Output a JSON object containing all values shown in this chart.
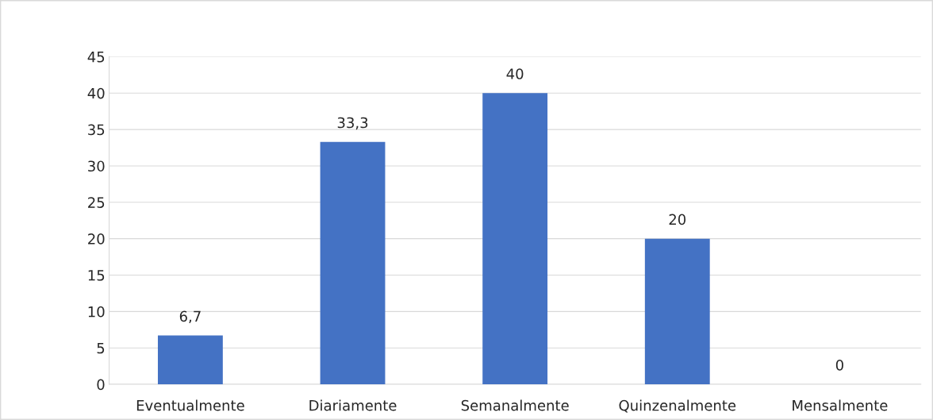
{
  "chart_data": {
    "type": "bar",
    "categories": [
      "Eventualmente",
      "Diariamente",
      "Semanalmente",
      "Quinzenalmente",
      "Mensalmente"
    ],
    "values": [
      6.7,
      33.3,
      40,
      20,
      0
    ],
    "value_labels": [
      "6,7",
      "33,3",
      "40",
      "20",
      "0"
    ],
    "color": "#4472c4",
    "ylim": [
      0,
      45
    ],
    "yticks": [
      0,
      5,
      10,
      15,
      20,
      25,
      30,
      35,
      40,
      45
    ],
    "grid": "y"
  }
}
